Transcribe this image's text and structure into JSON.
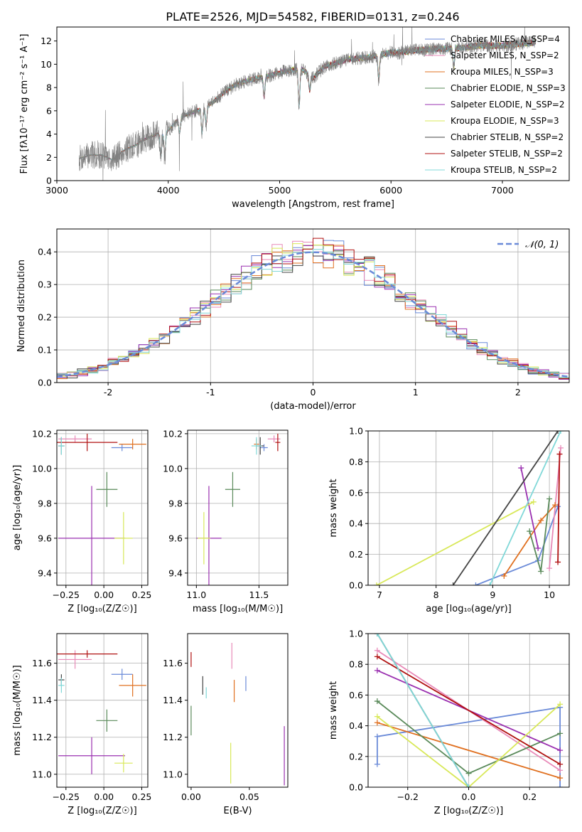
{
  "figure": {
    "title": "PLATE=2526, MJD=54582, FIBERID=0131, z=0.246"
  },
  "chart_data": [
    {
      "id": "spectrum",
      "type": "line",
      "xlabel": "wavelength [Angstrom, rest frame]",
      "ylabel": "Flux [fλ10⁻¹⁷ erg cm⁻² s⁻¹ A⁻¹]",
      "xlim": [
        3000,
        7600
      ],
      "ylim": [
        0,
        13.2
      ],
      "xticks": [
        3000,
        4000,
        5000,
        6000,
        7000
      ],
      "yticks": [
        0,
        2,
        4,
        6,
        8,
        10,
        12
      ],
      "grid": false,
      "legend_position": "top-right",
      "series": [
        {
          "name": "Chabrier MILES, N_SSP=4",
          "color": "#6a8ad8"
        },
        {
          "name": "Salpeter MILES, N_SSP=2",
          "color": "#e88ab8"
        },
        {
          "name": "Kroupa MILES, N_SSP=3",
          "color": "#e07020"
        },
        {
          "name": "Chabrier ELODIE, N_SSP=3",
          "color": "#5a8a5a"
        },
        {
          "name": "Salpeter ELODIE, N_SSP=2",
          "color": "#9a30b0"
        },
        {
          "name": "Kroupa ELODIE, N_SSP=3",
          "color": "#d8e858"
        },
        {
          "name": "Chabrier STELIB, N_SSP=2",
          "color": "#444444"
        },
        {
          "name": "Salpeter STELIB, N_SSP=2",
          "color": "#b01010"
        },
        {
          "name": "Kroupa STELIB, N_SSP=2",
          "color": "#80d8d8"
        }
      ],
      "data_color": "#808080",
      "continuum": {
        "x": [
          3200,
          3300,
          3400,
          3500,
          3600,
          3700,
          3800,
          3900,
          4000,
          4100,
          4200,
          4300,
          4400,
          4500,
          4600,
          4700,
          4800,
          4900,
          5000,
          5100,
          5200,
          5300,
          5400,
          5500,
          5600,
          5700,
          5800,
          5900,
          6000,
          6100,
          6200,
          6400,
          6600,
          6800,
          7000,
          7200,
          7300
        ],
        "y": [
          1.9,
          2.2,
          2.2,
          1.8,
          2.6,
          3.0,
          3.6,
          4.0,
          4.3,
          5.4,
          5.8,
          6.2,
          6.7,
          7.6,
          8.2,
          8.6,
          8.8,
          9.0,
          9.3,
          9.5,
          9.6,
          8.8,
          9.8,
          10.1,
          10.4,
          10.5,
          10.6,
          10.8,
          11.0,
          11.0,
          11.2,
          11.3,
          11.4,
          11.6,
          11.6,
          11.8,
          11.9
        ]
      }
    },
    {
      "id": "residuals",
      "type": "histogram",
      "xlabel": "(data-model)/error",
      "ylabel": "Normed distribution",
      "xlim": [
        -2.5,
        2.5
      ],
      "ylim": [
        0,
        0.47
      ],
      "xticks": [
        -2,
        -1,
        0,
        1,
        2
      ],
      "yticks": [
        0.0,
        0.1,
        0.2,
        0.3,
        0.4
      ],
      "grid": true,
      "legend_position": "top-right",
      "bin_width": 0.1,
      "gaussian": {
        "name": "𝒩(0, 1)",
        "color": "#6a8ad8",
        "mean": 0,
        "sigma": 1
      }
    },
    {
      "id": "age-vs-Z",
      "type": "errorbar",
      "xlabel": "Z [log₁₀(Z/Z☉)]",
      "ylabel": "age  [log₁₀(age/yr)]",
      "xlim": [
        -0.31,
        0.29
      ],
      "ylim": [
        9.33,
        10.22
      ],
      "xticks": [
        -0.25,
        0.0,
        0.25
      ],
      "xticklabels": [
        "−0.25",
        "0.00",
        "0.25"
      ],
      "yticks": [
        9.4,
        9.6,
        9.8,
        10.0,
        10.2
      ],
      "yticklabels": [
        "9.4",
        "9.6",
        "9.8",
        "10.0",
        "10.2"
      ],
      "grid": true,
      "points": [
        {
          "color": "#6a8ad8",
          "x": 0.12,
          "xerr": 0.07,
          "y": 10.12,
          "yerr": 0.02
        },
        {
          "color": "#e88ab8",
          "x": -0.19,
          "xerr": 0.11,
          "y": 10.17,
          "yerr": 0.02
        },
        {
          "color": "#e07020",
          "x": 0.19,
          "xerr": 0.09,
          "y": 10.14,
          "yerr": 0.03
        },
        {
          "color": "#5a8a5a",
          "x": 0.02,
          "xerr": 0.07,
          "y": 9.88,
          "yerr": 0.1
        },
        {
          "color": "#9a30b0",
          "x": -0.08,
          "xerr": 0.22,
          "y": 9.6,
          "yerr": 0.3
        },
        {
          "color": "#d8e858",
          "x": 0.13,
          "xerr": 0.06,
          "y": 9.6,
          "yerr": 0.15
        },
        {
          "color": "#444444",
          "x": -0.28,
          "xerr": 0.02,
          "y": 10.13,
          "yerr": 0.05
        },
        {
          "color": "#b01010",
          "x": -0.11,
          "xerr": 0.2,
          "y": 10.15,
          "yerr": 0.05
        },
        {
          "color": "#80d8d8",
          "x": -0.28,
          "xerr": 0.02,
          "y": 10.13,
          "yerr": 0.05
        }
      ]
    },
    {
      "id": "age-vs-mass",
      "type": "errorbar",
      "xlabel": "mass [log₁₀(M/M☉)]",
      "xlim": [
        10.93,
        11.73
      ],
      "ylim": [
        9.33,
        10.22
      ],
      "xticks": [
        11.0,
        11.5
      ],
      "xticklabels": [
        "11.0",
        "11.5"
      ],
      "yticks": [
        9.4,
        9.6,
        9.8,
        10.0,
        10.2
      ],
      "yticklabels": [
        "9.4",
        "9.6",
        "9.8",
        "10.0",
        "10.2"
      ],
      "grid": true,
      "points": [
        {
          "color": "#6a8ad8",
          "x": 11.54,
          "xerr": 0.03,
          "y": 10.12,
          "yerr": 0.02
        },
        {
          "color": "#e88ab8",
          "x": 11.62,
          "xerr": 0.05,
          "y": 10.17,
          "yerr": 0.02
        },
        {
          "color": "#e07020",
          "x": 11.48,
          "xerr": 0.02,
          "y": 10.14,
          "yerr": 0.03
        },
        {
          "color": "#5a8a5a",
          "x": 11.29,
          "xerr": 0.06,
          "y": 9.88,
          "yerr": 0.1
        },
        {
          "color": "#9a30b0",
          "x": 11.1,
          "xerr": 0.1,
          "y": 9.6,
          "yerr": 0.3
        },
        {
          "color": "#d8e858",
          "x": 11.06,
          "xerr": 0.05,
          "y": 9.6,
          "yerr": 0.15
        },
        {
          "color": "#444444",
          "x": 11.51,
          "xerr": 0.03,
          "y": 10.13,
          "yerr": 0.05
        },
        {
          "color": "#b01010",
          "x": 11.65,
          "xerr": 0.02,
          "y": 10.15,
          "yerr": 0.05
        },
        {
          "color": "#80d8d8",
          "x": 11.48,
          "xerr": 0.04,
          "y": 10.13,
          "yerr": 0.05
        }
      ]
    },
    {
      "id": "weight-vs-age",
      "type": "line",
      "ylabel": "mass weight",
      "xlabel": "age  [log₁₀(age/yr)]",
      "xlim": [
        6.8,
        10.35
      ],
      "ylim": [
        0,
        1
      ],
      "xticks": [
        7,
        8,
        9,
        10
      ],
      "xticklabels": [
        "7",
        "8",
        "9",
        "10"
      ],
      "yticks": [
        0.0,
        0.2,
        0.4,
        0.6,
        0.8,
        1.0
      ],
      "yticklabels": [
        "0.0",
        "0.2",
        "0.4",
        "0.6",
        "0.8",
        "1.0"
      ],
      "grid": true,
      "series": [
        {
          "color": "#6a8ad8",
          "x": [
            8.7,
            9.8,
            10.15
          ],
          "y": [
            0.0,
            0.16,
            0.51
          ]
        },
        {
          "color": "#e88ab8",
          "x": [
            10.0,
            10.2
          ],
          "y": [
            0.11,
            0.89
          ]
        },
        {
          "color": "#e07020",
          "x": [
            9.2,
            9.85,
            10.1
          ],
          "y": [
            0.06,
            0.42,
            0.52
          ]
        },
        {
          "color": "#5a8a5a",
          "x": [
            9.65,
            9.85,
            10.0
          ],
          "y": [
            0.35,
            0.09,
            0.56
          ]
        },
        {
          "color": "#9a30b0",
          "x": [
            9.5,
            9.8
          ],
          "y": [
            0.76,
            0.24
          ]
        },
        {
          "color": "#d8e858",
          "x": [
            6.95,
            9.72
          ],
          "y": [
            0.0,
            0.54
          ]
        },
        {
          "color": "#444444",
          "x": [
            8.3,
            10.15
          ],
          "y": [
            0.0,
            1.0
          ]
        },
        {
          "color": "#b01010",
          "x": [
            10.15,
            10.18
          ],
          "y": [
            0.15,
            0.85
          ]
        },
        {
          "color": "#80d8d8",
          "x": [
            8.95,
            10.2
          ],
          "y": [
            0.0,
            1.0
          ]
        }
      ]
    },
    {
      "id": "mass-vs-Z",
      "type": "errorbar",
      "xlabel": "Z [log₁₀(Z/Z☉)]",
      "ylabel": "mass [log₁₀(M/M☉)]",
      "xlim": [
        -0.31,
        0.29
      ],
      "ylim": [
        10.93,
        11.76
      ],
      "xticks": [
        -0.25,
        0.0,
        0.25
      ],
      "xticklabels": [
        "−0.25",
        "0.00",
        "0.25"
      ],
      "yticks": [
        11.0,
        11.2,
        11.4,
        11.6
      ],
      "yticklabels": [
        "11.0",
        "11.2",
        "11.4",
        "11.6"
      ],
      "grid": true,
      "points": [
        {
          "color": "#6a8ad8",
          "x": 0.12,
          "xerr": 0.07,
          "y": 11.54,
          "yerr": 0.03
        },
        {
          "color": "#e88ab8",
          "x": -0.19,
          "xerr": 0.11,
          "y": 11.62,
          "yerr": 0.05
        },
        {
          "color": "#e07020",
          "x": 0.19,
          "xerr": 0.09,
          "y": 11.48,
          "yerr": 0.06
        },
        {
          "color": "#5a8a5a",
          "x": 0.02,
          "xerr": 0.07,
          "y": 11.29,
          "yerr": 0.06
        },
        {
          "color": "#9a30b0",
          "x": -0.08,
          "xerr": 0.22,
          "y": 11.1,
          "yerr": 0.1
        },
        {
          "color": "#d8e858",
          "x": 0.13,
          "xerr": 0.06,
          "y": 11.06,
          "yerr": 0.05
        },
        {
          "color": "#444444",
          "x": -0.28,
          "xerr": 0.02,
          "y": 11.51,
          "yerr": 0.03
        },
        {
          "color": "#b01010",
          "x": -0.11,
          "xerr": 0.2,
          "y": 11.65,
          "yerr": 0.02
        },
        {
          "color": "#80d8d8",
          "x": -0.28,
          "xerr": 0.02,
          "y": 11.48,
          "yerr": 0.04
        }
      ]
    },
    {
      "id": "mass-vs-ebv",
      "type": "errorbar",
      "xlabel": "E(B-V)",
      "xlim": [
        -0.003,
        0.083
      ],
      "ylim": [
        10.93,
        11.76
      ],
      "xticks": [
        0.0,
        0.05
      ],
      "xticklabels": [
        "0.00",
        "0.05"
      ],
      "yticks": [
        11.0,
        11.2,
        11.4,
        11.6
      ],
      "yticklabels": [
        "11.0",
        "11.2",
        "11.4",
        "11.6"
      ],
      "grid": false,
      "points": [
        {
          "color": "#6a8ad8",
          "x": 0.047,
          "xerr": 0.0,
          "y": 11.49,
          "yerr": 0.04
        },
        {
          "color": "#e88ab8",
          "x": 0.035,
          "xerr": 0.0,
          "y": 11.64,
          "yerr": 0.07
        },
        {
          "color": "#e07020",
          "x": 0.037,
          "xerr": 0.0,
          "y": 11.45,
          "yerr": 0.06
        },
        {
          "color": "#5a8a5a",
          "x": 0.0,
          "xerr": 0.0,
          "y": 11.29,
          "yerr": 0.08
        },
        {
          "color": "#9a30b0",
          "x": 0.08,
          "xerr": 0.0,
          "y": 11.1,
          "yerr": 0.16
        },
        {
          "color": "#d8e858",
          "x": 0.034,
          "xerr": 0.0,
          "y": 11.06,
          "yerr": 0.11
        },
        {
          "color": "#444444",
          "x": 0.01,
          "xerr": 0.0,
          "y": 11.48,
          "yerr": 0.05
        },
        {
          "color": "#b01010",
          "x": 0.0,
          "xerr": 0.0,
          "y": 11.62,
          "yerr": 0.04
        },
        {
          "color": "#80d8d8",
          "x": 0.013,
          "xerr": 0.0,
          "y": 11.44,
          "yerr": 0.03
        }
      ]
    },
    {
      "id": "weight-vs-Z",
      "type": "line",
      "ylabel": "mass weight",
      "xlabel": "Z [log₁₀(Z/Z☉)]",
      "xlim": [
        -0.33,
        0.33
      ],
      "ylim": [
        0,
        1
      ],
      "xticks": [
        -0.2,
        0.0,
        0.2
      ],
      "xticklabels": [
        "−0.2",
        "0.0",
        "0.2"
      ],
      "yticks": [
        0.0,
        0.2,
        0.4,
        0.6,
        0.8,
        1.0
      ],
      "yticklabels": [
        "0.0",
        "0.2",
        "0.4",
        "0.6",
        "0.8",
        "1.0"
      ],
      "grid": true,
      "series": [
        {
          "color": "#6a8ad8",
          "x": [
            -0.3,
            -0.3,
            0.3,
            0.3
          ],
          "y": [
            0.15,
            0.33,
            0.52,
            0.0
          ]
        },
        {
          "color": "#e88ab8",
          "x": [
            -0.3,
            0.3
          ],
          "y": [
            0.89,
            0.11
          ]
        },
        {
          "color": "#e07020",
          "x": [
            -0.3,
            0.3
          ],
          "y": [
            0.42,
            0.06
          ]
        },
        {
          "color": "#5a8a5a",
          "x": [
            -0.3,
            0.0,
            0.3
          ],
          "y": [
            0.56,
            0.09,
            0.35
          ]
        },
        {
          "color": "#9a30b0",
          "x": [
            -0.3,
            0.3
          ],
          "y": [
            0.76,
            0.24
          ]
        },
        {
          "color": "#d8e858",
          "x": [
            -0.3,
            0.0,
            0.3
          ],
          "y": [
            0.46,
            0.0,
            0.54
          ]
        },
        {
          "color": "#444444",
          "x": [
            -0.3,
            0.0
          ],
          "y": [
            1.0,
            0.0
          ]
        },
        {
          "color": "#b01010",
          "x": [
            -0.3,
            0.3
          ],
          "y": [
            0.85,
            0.15
          ]
        },
        {
          "color": "#80d8d8",
          "x": [
            -0.3,
            0.0
          ],
          "y": [
            1.0,
            0.0
          ]
        }
      ]
    }
  ]
}
